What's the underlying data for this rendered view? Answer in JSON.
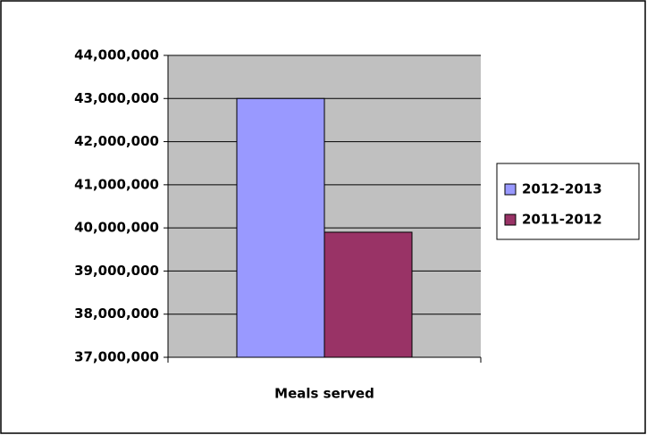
{
  "chart_data": {
    "type": "bar",
    "categories": [
      "Meals served"
    ],
    "series": [
      {
        "name": "2012-2013",
        "color": "#9999ff",
        "values": [
          43000000
        ]
      },
      {
        "name": "2011-2012",
        "color": "#993366",
        "values": [
          39900000
        ]
      }
    ],
    "ylim": [
      37000000,
      44000000
    ],
    "yticks": [
      {
        "value": 37000000,
        "label": "37,000,000"
      },
      {
        "value": 38000000,
        "label": "38,000,000"
      },
      {
        "value": 39000000,
        "label": "39,000,000"
      },
      {
        "value": 40000000,
        "label": "40,000,000"
      },
      {
        "value": 41000000,
        "label": "41,000,000"
      },
      {
        "value": 42000000,
        "label": "42,000,000"
      },
      {
        "value": 43000000,
        "label": "43,000,000"
      },
      {
        "value": 44000000,
        "label": "44,000,000"
      }
    ],
    "grid": true,
    "legend": "right"
  }
}
